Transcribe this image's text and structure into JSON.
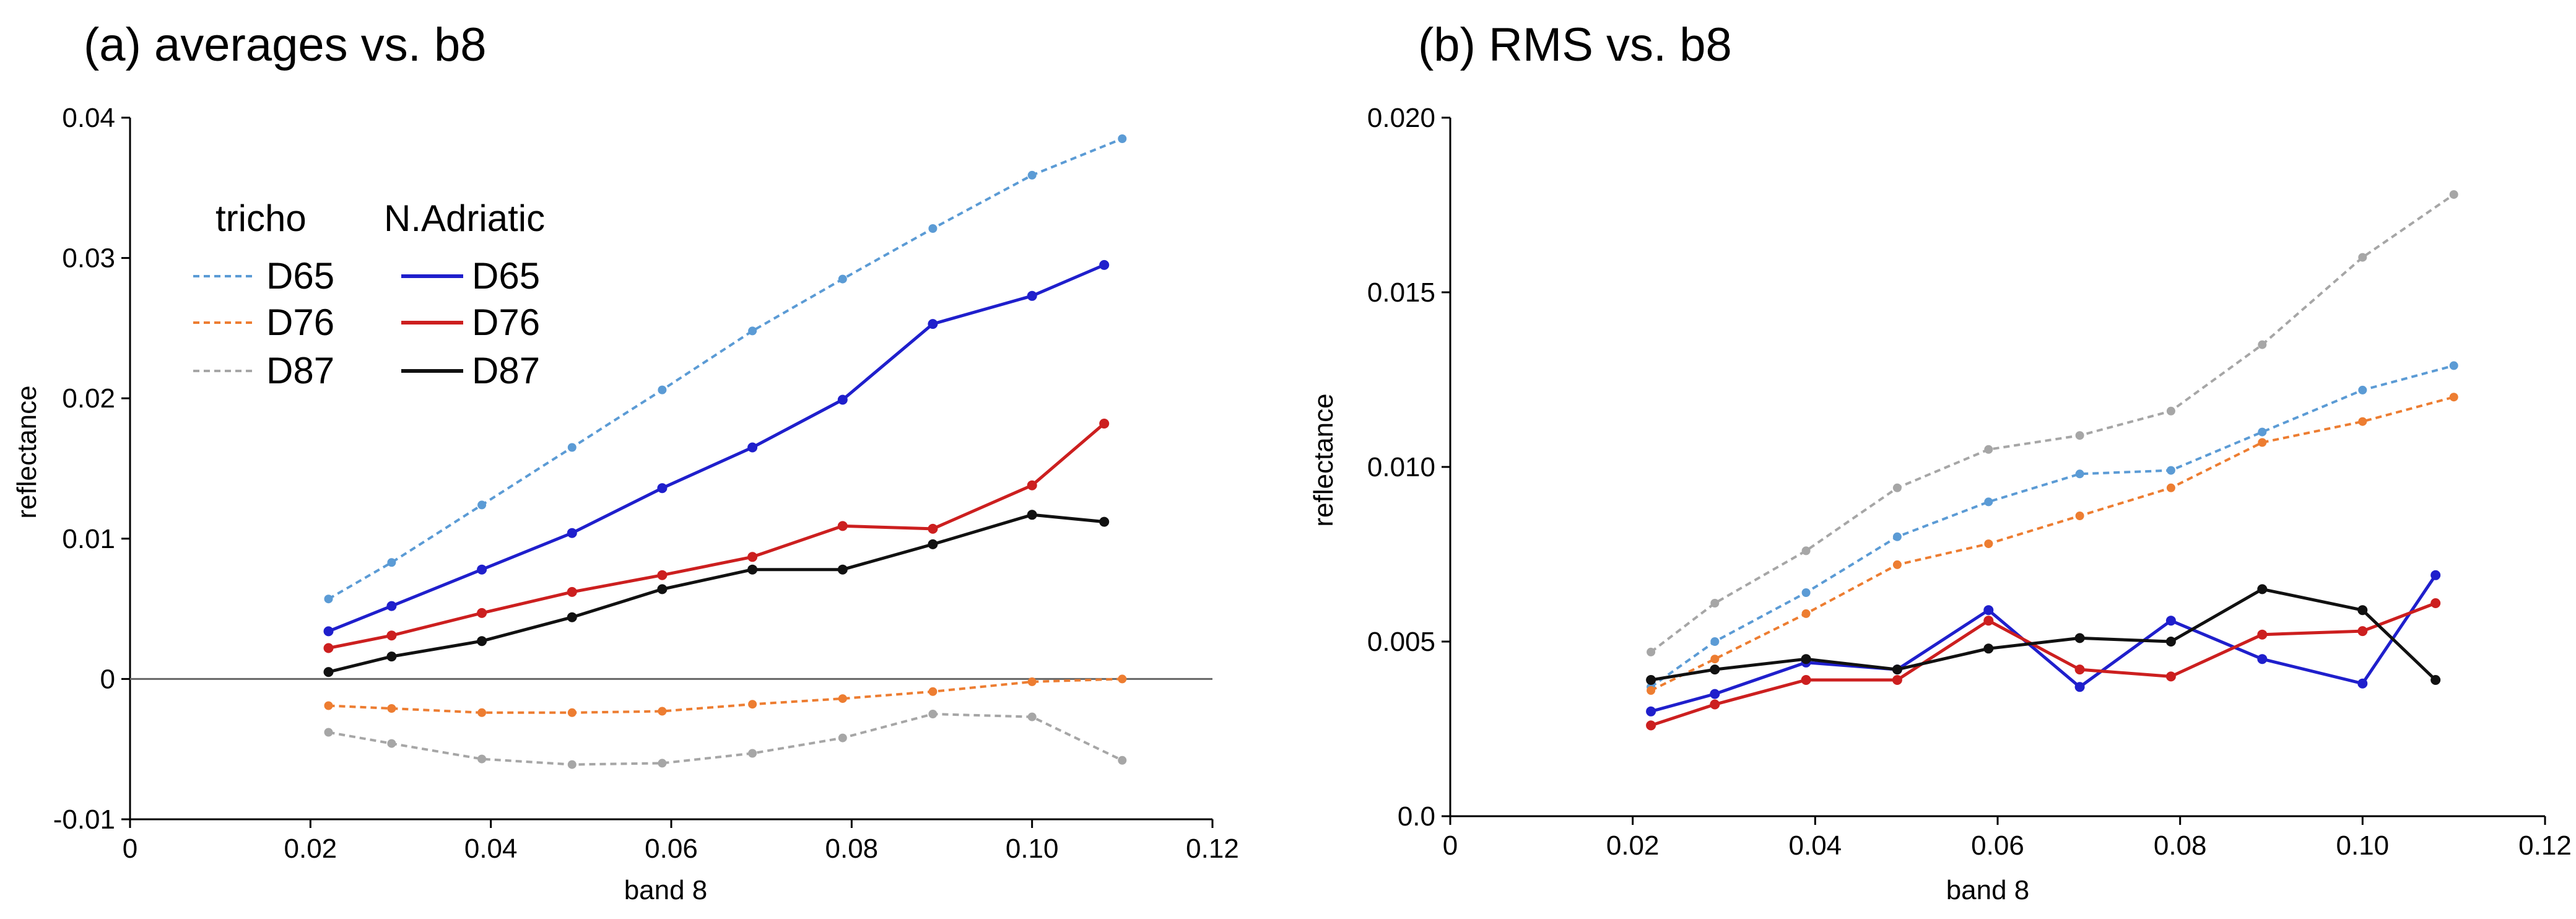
{
  "colors": {
    "tricho_D65": "#5B9BD5",
    "tricho_D76": "#ED7D31",
    "tricho_D87": "#A6A6A6",
    "nadriatic_D65": "#1F1FCC",
    "nadriatic_D76": "#CC1F1F",
    "nadriatic_D87": "#111111"
  },
  "chart_data": [
    {
      "type": "line",
      "title": "(a) averages vs. b8",
      "xlabel": "band 8",
      "ylabel": "reflectance",
      "xlim": [
        0,
        0.12
      ],
      "ylim": [
        -0.01,
        0.04
      ],
      "xticks": [
        0,
        0.02,
        0.04,
        0.06,
        0.08,
        0.1,
        0.12
      ],
      "xtick_labels": [
        "0",
        "0.02",
        "0.04",
        "0.06",
        "0.08",
        "0.10",
        "0.12"
      ],
      "yticks": [
        -0.01,
        0,
        0.01,
        0.02,
        0.03,
        0.04
      ],
      "ytick_labels": [
        "-0.01",
        "0",
        "0.01",
        "0.02",
        "0.03",
        "0.04"
      ],
      "zero_line": true,
      "legend": {
        "group_titles": [
          "tricho",
          "N.Adriatic"
        ],
        "entries": [
          "D65",
          "D76",
          "D87",
          "D65",
          "D76",
          "D87"
        ]
      },
      "series": [
        {
          "name": "tricho D65",
          "group": "tricho",
          "dashed": true,
          "color_key": "tricho_D65",
          "x": [
            0.022,
            0.029,
            0.039,
            0.049,
            0.059,
            0.069,
            0.079,
            0.089,
            0.1,
            0.11
          ],
          "y": [
            0.0057,
            0.0083,
            0.0124,
            0.0165,
            0.0206,
            0.0248,
            0.0285,
            0.0321,
            0.0359,
            0.0385
          ]
        },
        {
          "name": "tricho D76",
          "group": "tricho",
          "dashed": true,
          "color_key": "tricho_D76",
          "x": [
            0.022,
            0.029,
            0.039,
            0.049,
            0.059,
            0.069,
            0.079,
            0.089,
            0.1,
            0.11
          ],
          "y": [
            -0.0019,
            -0.0021,
            -0.0024,
            -0.0024,
            -0.0023,
            -0.0018,
            -0.0014,
            -0.0009,
            -0.0002,
            0.0
          ]
        },
        {
          "name": "tricho D87",
          "group": "tricho",
          "dashed": true,
          "color_key": "tricho_D87",
          "x": [
            0.022,
            0.029,
            0.039,
            0.049,
            0.059,
            0.069,
            0.079,
            0.089,
            0.1,
            0.11
          ],
          "y": [
            -0.0038,
            -0.0046,
            -0.0057,
            -0.0061,
            -0.006,
            -0.0053,
            -0.0042,
            -0.0025,
            -0.0027,
            -0.0058
          ]
        },
        {
          "name": "N.Adriatic D65",
          "group": "N.Adriatic",
          "dashed": false,
          "color_key": "nadriatic_D65",
          "x": [
            0.022,
            0.029,
            0.039,
            0.049,
            0.059,
            0.069,
            0.079,
            0.089,
            0.1,
            0.108
          ],
          "y": [
            0.0034,
            0.0052,
            0.0078,
            0.0104,
            0.0136,
            0.0165,
            0.0199,
            0.0253,
            0.0273,
            0.0295
          ]
        },
        {
          "name": "N.Adriatic D76",
          "group": "N.Adriatic",
          "dashed": false,
          "color_key": "nadriatic_D76",
          "x": [
            0.022,
            0.029,
            0.039,
            0.049,
            0.059,
            0.069,
            0.079,
            0.089,
            0.1,
            0.108
          ],
          "y": [
            0.0022,
            0.0031,
            0.0047,
            0.0062,
            0.0074,
            0.0087,
            0.0109,
            0.0107,
            0.0138,
            0.0182
          ]
        },
        {
          "name": "N.Adriatic D87",
          "group": "N.Adriatic",
          "dashed": false,
          "color_key": "nadriatic_D87",
          "x": [
            0.022,
            0.029,
            0.039,
            0.049,
            0.059,
            0.069,
            0.079,
            0.089,
            0.1,
            0.108
          ],
          "y": [
            0.0005,
            0.0016,
            0.0027,
            0.0044,
            0.0064,
            0.0078,
            0.0078,
            0.0096,
            0.0117,
            0.0112
          ]
        }
      ]
    },
    {
      "type": "line",
      "title": "(b) RMS vs. b8",
      "xlabel": "band 8",
      "ylabel": "reflectance",
      "xlim": [
        0,
        0.12
      ],
      "ylim": [
        0,
        0.02
      ],
      "xticks": [
        0,
        0.02,
        0.04,
        0.06,
        0.08,
        0.1,
        0.12
      ],
      "xtick_labels": [
        "0",
        "0.02",
        "0.04",
        "0.06",
        "0.08",
        "0.10",
        "0.12"
      ],
      "yticks": [
        0,
        0.005,
        0.01,
        0.015,
        0.02
      ],
      "ytick_labels": [
        "0.0",
        "0.005",
        "0.010",
        "0.015",
        "0.020"
      ],
      "zero_line": false,
      "series": [
        {
          "name": "tricho D65",
          "group": "tricho",
          "dashed": true,
          "color_key": "tricho_D65",
          "x": [
            0.022,
            0.029,
            0.039,
            0.049,
            0.059,
            0.069,
            0.079,
            0.089,
            0.1,
            0.11
          ],
          "y": [
            0.0037,
            0.005,
            0.0064,
            0.008,
            0.009,
            0.0098,
            0.0099,
            0.011,
            0.0122,
            0.0129
          ]
        },
        {
          "name": "tricho D76",
          "group": "tricho",
          "dashed": true,
          "color_key": "tricho_D76",
          "x": [
            0.022,
            0.029,
            0.039,
            0.049,
            0.059,
            0.069,
            0.079,
            0.089,
            0.1,
            0.11
          ],
          "y": [
            0.0036,
            0.0045,
            0.0058,
            0.0072,
            0.0078,
            0.0086,
            0.0094,
            0.0107,
            0.0113,
            0.012
          ]
        },
        {
          "name": "tricho D87",
          "group": "tricho",
          "dashed": true,
          "color_key": "tricho_D87",
          "x": [
            0.022,
            0.029,
            0.039,
            0.049,
            0.059,
            0.069,
            0.079,
            0.089,
            0.1,
            0.11
          ],
          "y": [
            0.0047,
            0.0061,
            0.0076,
            0.0094,
            0.0105,
            0.0109,
            0.0116,
            0.0135,
            0.016,
            0.0178
          ]
        },
        {
          "name": "N.Adriatic D65",
          "group": "N.Adriatic",
          "dashed": false,
          "color_key": "nadriatic_D65",
          "x": [
            0.022,
            0.029,
            0.039,
            0.049,
            0.059,
            0.069,
            0.079,
            0.089,
            0.1,
            0.108
          ],
          "y": [
            0.003,
            0.0035,
            0.0044,
            0.0042,
            0.0059,
            0.0037,
            0.0056,
            0.0045,
            0.0038,
            0.0069
          ]
        },
        {
          "name": "N.Adriatic D76",
          "group": "N.Adriatic",
          "dashed": false,
          "color_key": "nadriatic_D76",
          "x": [
            0.022,
            0.029,
            0.039,
            0.049,
            0.059,
            0.069,
            0.079,
            0.089,
            0.1,
            0.108
          ],
          "y": [
            0.0026,
            0.0032,
            0.0039,
            0.0039,
            0.0056,
            0.0042,
            0.004,
            0.0052,
            0.0053,
            0.0061
          ]
        },
        {
          "name": "N.Adriatic D87",
          "group": "N.Adriatic",
          "dashed": false,
          "color_key": "nadriatic_D87",
          "x": [
            0.022,
            0.029,
            0.039,
            0.049,
            0.059,
            0.069,
            0.079,
            0.089,
            0.1,
            0.108
          ],
          "y": [
            0.0039,
            0.0042,
            0.0045,
            0.0042,
            0.0048,
            0.0051,
            0.005,
            0.0065,
            0.0059,
            0.0039
          ]
        }
      ]
    }
  ]
}
